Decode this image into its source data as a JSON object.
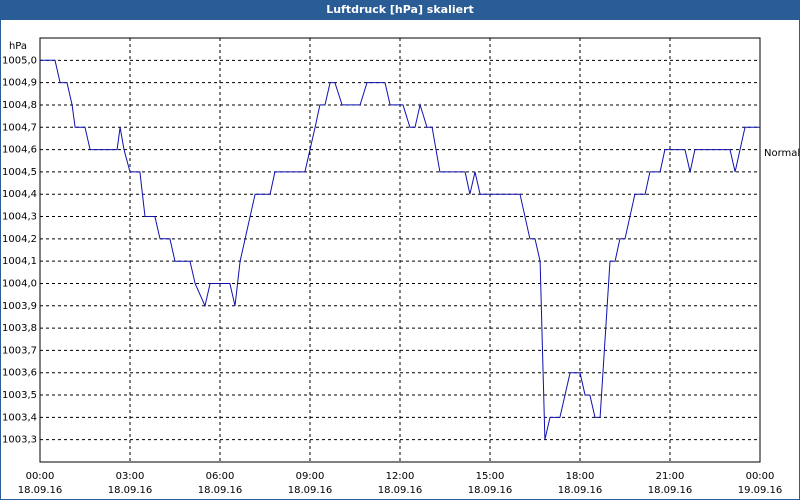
{
  "chart_data": {
    "type": "line",
    "title": "Luftdruck [hPa] skaliert",
    "y_unit": "hPa",
    "xlim": [
      0,
      24
    ],
    "xticks": [
      {
        "value": 0,
        "label": "00:00"
      },
      {
        "value": 3,
        "label": "03:00"
      },
      {
        "value": 6,
        "label": "06:00"
      },
      {
        "value": 9,
        "label": "09:00"
      },
      {
        "value": 12,
        "label": "12:00"
      },
      {
        "value": 15,
        "label": "15:00"
      },
      {
        "value": 18,
        "label": "18:00"
      },
      {
        "value": 21,
        "label": "21:00"
      },
      {
        "value": 24,
        "label": "00:00"
      }
    ],
    "xtick_dates": [
      "18.09.16",
      "18.09.16",
      "18.09.16",
      "18.09.16",
      "18.09.16",
      "18.09.16",
      "18.09.16",
      "18.09.16",
      "19.09.16"
    ],
    "ylim": [
      1003.2,
      1005.1
    ],
    "yticks": [
      {
        "value": 1003.3,
        "label": "1003,3"
      },
      {
        "value": 1003.4,
        "label": "1003,4"
      },
      {
        "value": 1003.5,
        "label": "1003,5"
      },
      {
        "value": 1003.6,
        "label": "1003,6"
      },
      {
        "value": 1003.7,
        "label": "1003,7"
      },
      {
        "value": 1003.8,
        "label": "1003,8"
      },
      {
        "value": 1003.9,
        "label": "1003,9"
      },
      {
        "value": 1004.0,
        "label": "1004,0"
      },
      {
        "value": 1004.1,
        "label": "1004,1"
      },
      {
        "value": 1004.2,
        "label": "1004,2"
      },
      {
        "value": 1004.3,
        "label": "1004,3"
      },
      {
        "value": 1004.4,
        "label": "1004,4"
      },
      {
        "value": 1004.5,
        "label": "1004,5"
      },
      {
        "value": 1004.6,
        "label": "1004,6"
      },
      {
        "value": 1004.7,
        "label": "1004,7"
      },
      {
        "value": 1004.8,
        "label": "1004,8"
      },
      {
        "value": 1004.9,
        "label": "1004,9"
      },
      {
        "value": 1005.0,
        "label": "1005,0"
      }
    ],
    "grid": true,
    "x": [
      0,
      0.5,
      0.67,
      0.9,
      1.07,
      1.17,
      1.5,
      1.67,
      2.57,
      2.67,
      2.8,
      3,
      3.33,
      3.5,
      3.83,
      4,
      4.33,
      4.5,
      5,
      5.17,
      5.5,
      5.67,
      6.33,
      6.5,
      6.67,
      7.17,
      7.67,
      7.83,
      8.83,
      9,
      9.17,
      9.33,
      9.5,
      9.67,
      9.83,
      10.07,
      10.67,
      10.9,
      11.5,
      11.67,
      12.1,
      12.33,
      12.5,
      12.67,
      12.9,
      13.07,
      13.33,
      14.17,
      14.33,
      14.5,
      14.67,
      16,
      16.33,
      16.5,
      16.67,
      16.83,
      17,
      17.33,
      17.67,
      18,
      18.17,
      18.33,
      18.5,
      18.67,
      19,
      19.17,
      19.33,
      19.5,
      19.83,
      20.17,
      20.33,
      20.67,
      20.83,
      21.5,
      21.67,
      21.83,
      23,
      23.17,
      23.5,
      24
    ],
    "series": [
      {
        "name": "Normal",
        "color": "#1010b0",
        "values": [
          1005.0,
          1005.0,
          1004.9,
          1004.9,
          1004.8,
          1004.7,
          1004.7,
          1004.6,
          1004.6,
          1004.7,
          1004.6,
          1004.5,
          1004.5,
          1004.3,
          1004.3,
          1004.2,
          1004.2,
          1004.1,
          1004.1,
          1004.0,
          1003.9,
          1004.0,
          1004.0,
          1003.9,
          1004.1,
          1004.4,
          1004.4,
          1004.5,
          1004.5,
          1004.6,
          1004.7,
          1004.8,
          1004.8,
          1004.9,
          1004.9,
          1004.8,
          1004.8,
          1004.9,
          1004.9,
          1004.8,
          1004.8,
          1004.7,
          1004.7,
          1004.8,
          1004.7,
          1004.7,
          1004.5,
          1004.5,
          1004.4,
          1004.5,
          1004.4,
          1004.4,
          1004.2,
          1004.2,
          1004.1,
          1003.3,
          1003.4,
          1003.4,
          1003.6,
          1003.6,
          1003.5,
          1003.5,
          1003.4,
          1003.4,
          1004.1,
          1004.1,
          1004.2,
          1004.2,
          1004.4,
          1004.4,
          1004.5,
          1004.5,
          1004.6,
          1004.6,
          1004.5,
          1004.6,
          1004.6,
          1004.5,
          1004.7,
          1004.7
        ]
      }
    ]
  }
}
